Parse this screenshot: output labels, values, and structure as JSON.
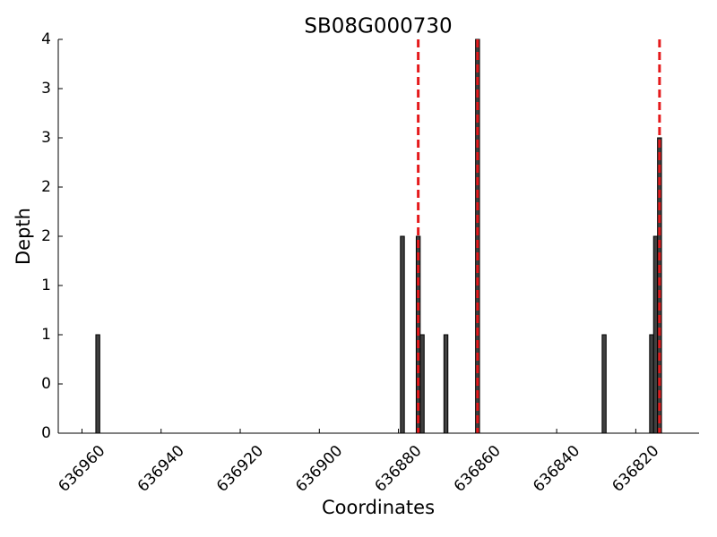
{
  "chart_data": {
    "type": "bar",
    "title": "SB08G000730",
    "x_label": "Coordinates",
    "y_label": "Depth",
    "x": [
      636956,
      636879,
      636875,
      636874,
      636868,
      636860,
      636828,
      636816,
      636815,
      636814
    ],
    "values": [
      1,
      2,
      2,
      1,
      1,
      4,
      1,
      1,
      2,
      3
    ],
    "color": "#404040",
    "markers": [
      636875,
      636860,
      636814
    ],
    "marker_color": "#e41a1c",
    "xlim": [
      636966,
      636804
    ],
    "xticks": [
      636960,
      636940,
      636920,
      636900,
      636880,
      636860,
      636840,
      636820
    ],
    "ylim": [
      0,
      4
    ],
    "yticks": [
      0,
      {
        "value": 0.5,
        "label": "0"
      },
      1,
      {
        "value": 1.5,
        "label": "1"
      },
      2,
      {
        "value": 2.5,
        "label": "2"
      },
      3,
      {
        "value": 3.5,
        "label": "3"
      },
      4
    ]
  }
}
